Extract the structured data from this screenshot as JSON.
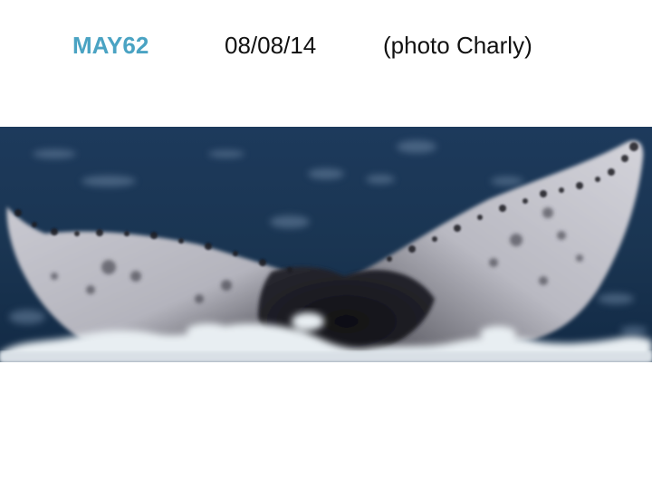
{
  "slide": {
    "id_label": "MAY62",
    "date": "08/08/14",
    "credit": "(photo Charly)",
    "accent_color": "#4aa3c3"
  },
  "photo": {
    "subject": "humpback whale fluke (tail) above ocean surface with white water spray",
    "palette": {
      "sea_dark": "#132a44",
      "sea_mid": "#27476a",
      "fluke_light": "#c8c8cf",
      "fluke_dark": "#1a1a20",
      "foam": "#e9eef2"
    }
  }
}
